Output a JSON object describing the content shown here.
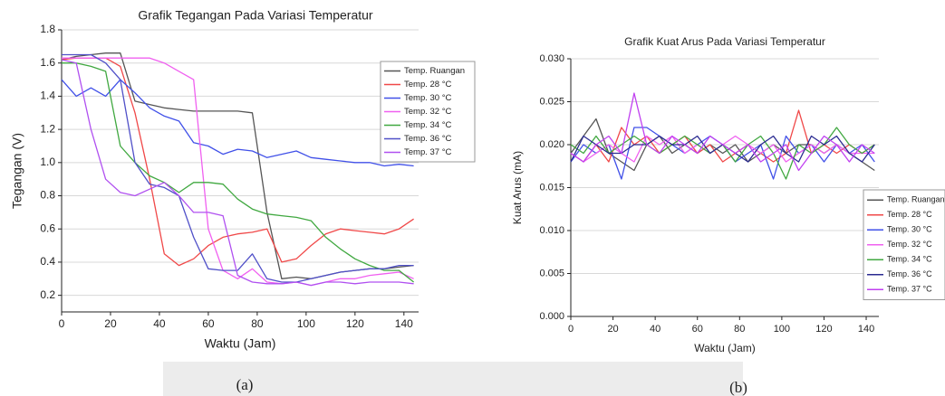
{
  "chart_data": [
    {
      "type": "line",
      "title": "Grafik Tegangan Pada Variasi Temperatur",
      "caption": "(a)",
      "x_label": "Waktu (Jam)",
      "y_label": "Tegangan (V)",
      "x": [
        0,
        6,
        12,
        18,
        24,
        30,
        36,
        42,
        48,
        54,
        60,
        66,
        72,
        78,
        84,
        90,
        96,
        102,
        108,
        114,
        120,
        126,
        132,
        138,
        144
      ],
      "xlim": [
        0,
        146
      ],
      "xticks": [
        0,
        20,
        40,
        60,
        80,
        100,
        120,
        140
      ],
      "ylim": [
        0.1,
        1.8
      ],
      "yticks": [
        0.2,
        0.4,
        0.6,
        0.8,
        {
          "value": 1.0,
          "label": "1.0"
        },
        1.2,
        1.4,
        1.6,
        1.8
      ],
      "grid": true,
      "legend": "upper right",
      "series": [
        {
          "name": "Temp. Ruangan",
          "color": "#555555",
          "values": [
            1.62,
            1.64,
            1.65,
            1.66,
            1.66,
            1.37,
            1.35,
            1.33,
            1.32,
            1.31,
            1.31,
            1.31,
            1.31,
            1.3,
            0.7,
            0.3,
            0.31,
            0.3,
            0.32,
            0.34,
            0.35,
            0.36,
            0.36,
            0.37,
            0.38
          ]
        },
        {
          "name": "Temp. 28 °C",
          "color": "#f04848",
          "values": [
            1.62,
            1.63,
            1.63,
            1.63,
            1.58,
            1.3,
            0.9,
            0.45,
            0.38,
            0.42,
            0.5,
            0.55,
            0.57,
            0.58,
            0.6,
            0.4,
            0.42,
            0.5,
            0.57,
            0.6,
            0.59,
            0.58,
            0.57,
            0.6,
            0.66
          ]
        },
        {
          "name": "Temp. 30 °C",
          "color": "#4050e8",
          "values": [
            1.5,
            1.4,
            1.45,
            1.4,
            1.5,
            1.42,
            1.33,
            1.28,
            1.25,
            1.12,
            1.1,
            1.05,
            1.08,
            1.07,
            1.03,
            1.05,
            1.07,
            1.03,
            1.02,
            1.01,
            1.0,
            1.0,
            0.98,
            0.99,
            0.98
          ]
        },
        {
          "name": "Temp. 32 °C",
          "color": "#f060f0",
          "values": [
            1.63,
            1.63,
            1.63,
            1.63,
            1.63,
            1.63,
            1.63,
            1.6,
            1.55,
            1.5,
            0.6,
            0.35,
            0.3,
            0.36,
            0.28,
            0.27,
            0.28,
            0.26,
            0.28,
            0.3,
            0.3,
            0.32,
            0.33,
            0.34,
            0.3
          ]
        },
        {
          "name": "Temp. 34 °C",
          "color": "#40a840",
          "values": [
            1.6,
            1.6,
            1.58,
            1.55,
            1.1,
            1.0,
            0.92,
            0.88,
            0.82,
            0.88,
            0.88,
            0.87,
            0.78,
            0.72,
            0.69,
            0.68,
            0.67,
            0.65,
            0.55,
            0.48,
            0.42,
            0.38,
            0.35,
            0.35,
            0.28
          ]
        },
        {
          "name": "Temp. 36 °C",
          "color": "#5050c8",
          "values": [
            1.65,
            1.65,
            1.65,
            1.6,
            1.5,
            1.0,
            0.87,
            0.85,
            0.8,
            0.55,
            0.36,
            0.35,
            0.35,
            0.45,
            0.3,
            0.28,
            0.28,
            0.3,
            0.32,
            0.34,
            0.35,
            0.36,
            0.36,
            0.38,
            0.38
          ]
        },
        {
          "name": "Temp. 37 °C",
          "color": "#b050f0",
          "values": [
            1.62,
            1.6,
            1.2,
            0.9,
            0.82,
            0.8,
            0.84,
            0.88,
            0.8,
            0.7,
            0.7,
            0.68,
            0.32,
            0.28,
            0.27,
            0.27,
            0.28,
            0.26,
            0.28,
            0.28,
            0.27,
            0.28,
            0.28,
            0.28,
            0.27
          ]
        }
      ]
    },
    {
      "type": "line",
      "title": "Grafik Kuat Arus Pada Variasi Temperatur",
      "caption": "(b)",
      "x_label": "Waktu (Jam)",
      "y_label": "Kuat Arus (mA)",
      "x": [
        0,
        6,
        12,
        18,
        24,
        30,
        36,
        42,
        48,
        54,
        60,
        66,
        72,
        78,
        84,
        90,
        96,
        102,
        108,
        114,
        120,
        126,
        132,
        138,
        144
      ],
      "xlim": [
        0,
        146
      ],
      "xticks": [
        0,
        20,
        40,
        60,
        80,
        100,
        120,
        140
      ],
      "ylim": [
        0,
        0.03
      ],
      "yticks": [
        {
          "value": 0,
          "label": "0.000"
        },
        {
          "value": 0.005,
          "label": "0.005"
        },
        {
          "value": 0.01,
          "label": "0.010"
        },
        {
          "value": 0.015,
          "label": "0.015"
        },
        {
          "value": 0.02,
          "label": "0.020"
        },
        {
          "value": 0.025,
          "label": "0.025"
        },
        {
          "value": 0.03,
          "label": "0.030"
        }
      ],
      "grid": true,
      "legend": "right",
      "series": [
        {
          "name": "Temp. Ruangan",
          "color": "#555555",
          "values": [
            0.019,
            0.021,
            0.023,
            0.019,
            0.018,
            0.017,
            0.02,
            0.021,
            0.019,
            0.02,
            0.019,
            0.02,
            0.019,
            0.02,
            0.018,
            0.019,
            0.02,
            0.019,
            0.02,
            0.02,
            0.019,
            0.02,
            0.019,
            0.018,
            0.017
          ]
        },
        {
          "name": "Temp. 28 °C",
          "color": "#f04848",
          "values": [
            0.019,
            0.018,
            0.02,
            0.018,
            0.022,
            0.02,
            0.021,
            0.019,
            0.02,
            0.021,
            0.019,
            0.02,
            0.018,
            0.019,
            0.02,
            0.019,
            0.018,
            0.019,
            0.024,
            0.019,
            0.02,
            0.019,
            0.02,
            0.019,
            0.02
          ]
        },
        {
          "name": "Temp. 30 °C",
          "color": "#4050e8",
          "values": [
            0.018,
            0.02,
            0.019,
            0.02,
            0.016,
            0.022,
            0.022,
            0.021,
            0.02,
            0.019,
            0.02,
            0.021,
            0.02,
            0.018,
            0.019,
            0.02,
            0.016,
            0.021,
            0.019,
            0.02,
            0.018,
            0.02,
            0.019,
            0.02,
            0.018
          ]
        },
        {
          "name": "Temp. 32 °C",
          "color": "#f060f0",
          "values": [
            0.019,
            0.018,
            0.019,
            0.02,
            0.019,
            0.018,
            0.021,
            0.02,
            0.021,
            0.019,
            0.02,
            0.019,
            0.02,
            0.021,
            0.02,
            0.019,
            0.02,
            0.018,
            0.019,
            0.02,
            0.019,
            0.02,
            0.019,
            0.019,
            0.019
          ]
        },
        {
          "name": "Temp. 34 °C",
          "color": "#40a840",
          "values": [
            0.02,
            0.019,
            0.021,
            0.019,
            0.02,
            0.021,
            0.02,
            0.019,
            0.02,
            0.021,
            0.02,
            0.019,
            0.02,
            0.018,
            0.02,
            0.021,
            0.019,
            0.016,
            0.02,
            0.019,
            0.02,
            0.022,
            0.02,
            0.019,
            0.02
          ]
        },
        {
          "name": "Temp. 36 °C",
          "color": "#2a2a90",
          "values": [
            0.018,
            0.021,
            0.02,
            0.019,
            0.019,
            0.02,
            0.02,
            0.021,
            0.02,
            0.02,
            0.021,
            0.019,
            0.02,
            0.019,
            0.018,
            0.02,
            0.021,
            0.019,
            0.018,
            0.021,
            0.02,
            0.021,
            0.019,
            0.018,
            0.02
          ]
        },
        {
          "name": "Temp. 37 °C",
          "color": "#c040f0",
          "values": [
            0.019,
            0.018,
            0.02,
            0.021,
            0.019,
            0.026,
            0.02,
            0.019,
            0.021,
            0.02,
            0.019,
            0.021,
            0.02,
            0.019,
            0.02,
            0.018,
            0.019,
            0.02,
            0.017,
            0.019,
            0.021,
            0.02,
            0.018,
            0.02,
            0.019
          ]
        }
      ]
    }
  ]
}
